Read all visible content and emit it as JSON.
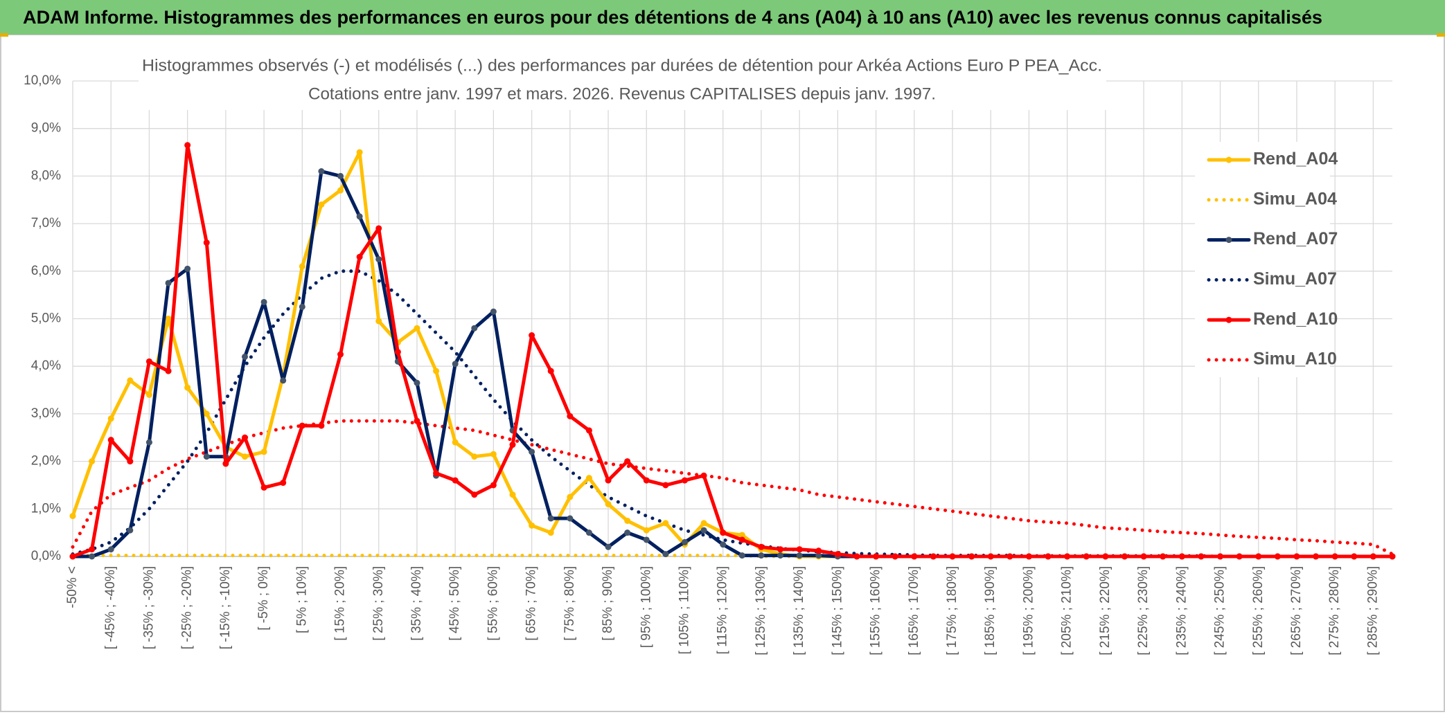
{
  "chart_data": {
    "type": "line",
    "header": "ADAM Informe. Histogrammes des performances en euros pour des détentions de 4 ans (A04) à 10 ans (A10) avec les revenus connus capitalisés",
    "title": "Histogrammes observés (-) et modélisés (...) des performances par durées de détention pour Arkéa Actions Euro P PEA_Acc.",
    "subtitle": "Cotations entre janv. 1997 et mars. 2026. Revenus CAPITALISES depuis janv. 1997.",
    "categories": [
      "-50% <",
      null,
      "[ -45% ; -40%]",
      null,
      "[ -35% ; -30%]",
      null,
      "[ -25% ; -20%]",
      null,
      "[ -15% ; -10%]",
      null,
      "[ -5% ; 0%]",
      null,
      "[ 5% ; 10%]",
      null,
      "[ 15% ; 20%]",
      null,
      "[ 25% ; 30%]",
      null,
      "[ 35% ; 40%]",
      null,
      "[ 45% ; 50%]",
      null,
      "[ 55% ; 60%]",
      null,
      "[ 65% ; 70%]",
      null,
      "[ 75% ; 80%]",
      null,
      "[ 85% ; 90%]",
      null,
      "[ 95% ; 100%]",
      null,
      "[ 105% ; 110%]",
      null,
      "[ 115% ; 120%]",
      null,
      "[ 125% ; 130%]",
      null,
      "[ 135% ; 140%]",
      null,
      "[ 145% ; 150%]",
      null,
      "[ 155% ; 160%]",
      null,
      "[ 165% ; 170%]",
      null,
      "[ 175% ; 180%]",
      null,
      "[ 185% ; 190%]",
      null,
      "[ 195% ; 200%]",
      null,
      "[ 205% ; 210%]",
      null,
      "[ 215% ; 220%]",
      null,
      "[ 225% ; 230%]",
      null,
      "[ 235% ; 240%]",
      null,
      "[ 245% ; 250%]",
      null,
      "[ 255% ; 260%]",
      null,
      "[ 265% ; 270%]",
      null,
      "[ 275% ; 280%]",
      null,
      "[ 285% ; 290%]",
      null
    ],
    "series": [
      {
        "name": "Rend_A04",
        "color": "#ffc000",
        "style": "solid",
        "values": [
          0.85,
          2.0,
          2.9,
          3.7,
          3.4,
          5.0,
          3.55,
          3.0,
          2.3,
          2.1,
          2.2,
          3.8,
          6.1,
          7.4,
          7.7,
          8.5,
          4.95,
          4.5,
          4.8,
          3.9,
          2.4,
          2.1,
          2.15,
          1.3,
          0.65,
          0.5,
          1.25,
          1.65,
          1.1,
          0.75,
          0.55,
          0.7,
          0.25,
          0.7,
          0.5,
          0.45,
          0.15,
          0.05,
          0,
          0,
          0,
          0,
          0,
          0,
          0,
          0,
          0,
          0,
          0,
          0,
          0,
          0,
          0,
          0,
          0,
          0,
          0,
          0,
          0,
          0,
          0,
          0,
          0,
          0,
          0,
          0,
          0,
          0,
          0,
          0
        ]
      },
      {
        "name": "Simu_A04",
        "color": "#ffc000",
        "style": "dotted",
        "values": [
          0.02,
          0.02,
          0.02,
          0.02,
          0.02,
          0.02,
          0.02,
          0.02,
          0.02,
          0.02,
          0.02,
          0.02,
          0.02,
          0.02,
          0.02,
          0.02,
          0.02,
          0.02,
          0.02,
          0.02,
          0.02,
          0.02,
          0.02,
          0.02,
          0.02,
          0.02,
          0.02,
          0.02,
          0.02,
          0.02,
          0.02,
          0.02,
          0.02,
          0.02,
          0.02,
          0.02,
          0,
          0,
          0,
          0,
          0,
          0,
          0,
          0,
          0,
          0,
          0,
          0,
          0,
          0,
          0,
          0,
          0,
          0,
          0,
          0,
          0,
          0,
          0,
          0,
          0,
          0,
          0,
          0,
          0,
          0,
          0,
          0,
          0,
          0
        ]
      },
      {
        "name": "Rend_A07",
        "color": "#002060",
        "marker": "#44546a",
        "style": "solid",
        "values": [
          0,
          0,
          0.15,
          0.55,
          2.4,
          5.75,
          6.05,
          2.1,
          2.1,
          4.2,
          5.35,
          3.7,
          5.25,
          8.1,
          8.0,
          7.15,
          6.25,
          4.1,
          3.65,
          1.7,
          4.05,
          4.8,
          5.15,
          2.65,
          2.2,
          0.8,
          0.8,
          0.5,
          0.2,
          0.5,
          0.35,
          0.05,
          0.3,
          0.55,
          0.25,
          0.02,
          0.02,
          0.02,
          0.02,
          0.02,
          0,
          0,
          0,
          0,
          0,
          0,
          0,
          0,
          0,
          0,
          0,
          0,
          0,
          0,
          0,
          0,
          0,
          0,
          0,
          0,
          0,
          0,
          0,
          0,
          0,
          0,
          0,
          0,
          0,
          0
        ]
      },
      {
        "name": "Simu_A07",
        "color": "#002060",
        "style": "dotted",
        "values": [
          0.05,
          0.15,
          0.3,
          0.6,
          1.0,
          1.5,
          2.0,
          2.6,
          3.3,
          4.0,
          4.6,
          5.1,
          5.5,
          5.85,
          6.0,
          6.0,
          5.8,
          5.5,
          5.1,
          4.7,
          4.3,
          3.8,
          3.3,
          2.85,
          2.45,
          2.1,
          1.8,
          1.5,
          1.25,
          1.05,
          0.85,
          0.7,
          0.55,
          0.45,
          0.35,
          0.28,
          0.22,
          0.17,
          0.13,
          0.1,
          0.08,
          0.06,
          0.05,
          0.04,
          0.03,
          0.02,
          0.02,
          0.02,
          0.02,
          0.02,
          0.01,
          0.01,
          0.01,
          0.01,
          0.01,
          0.01,
          0.01,
          0.01,
          0.01,
          0.01,
          0,
          0,
          0,
          0,
          0,
          0,
          0,
          0,
          0,
          0
        ]
      },
      {
        "name": "Rend_A10",
        "color": "#ff0000",
        "style": "solid",
        "values": [
          0,
          0.15,
          2.45,
          2.0,
          4.1,
          3.9,
          8.65,
          6.6,
          1.95,
          2.5,
          1.45,
          1.55,
          2.75,
          2.75,
          4.25,
          6.3,
          6.9,
          4.3,
          2.85,
          1.75,
          1.6,
          1.3,
          1.5,
          2.35,
          4.65,
          3.9,
          2.95,
          2.65,
          1.6,
          2.0,
          1.6,
          1.5,
          1.6,
          1.7,
          0.5,
          0.35,
          0.2,
          0.15,
          0.15,
          0.12,
          0.05,
          0,
          0,
          0,
          0,
          0,
          0,
          0,
          0,
          0,
          0,
          0,
          0,
          0,
          0,
          0,
          0,
          0,
          0,
          0,
          0,
          0,
          0,
          0,
          0,
          0,
          0,
          0,
          0,
          0
        ]
      },
      {
        "name": "Simu_A10",
        "color": "#ff0000",
        "style": "dotted",
        "values": [
          0.2,
          0.95,
          1.3,
          1.45,
          1.6,
          1.85,
          2.05,
          2.2,
          2.35,
          2.5,
          2.6,
          2.7,
          2.75,
          2.8,
          2.85,
          2.85,
          2.85,
          2.85,
          2.8,
          2.75,
          2.7,
          2.65,
          2.55,
          2.45,
          2.35,
          2.25,
          2.15,
          2.05,
          1.95,
          1.9,
          1.85,
          1.8,
          1.75,
          1.7,
          1.65,
          1.55,
          1.5,
          1.45,
          1.4,
          1.3,
          1.25,
          1.2,
          1.15,
          1.1,
          1.05,
          1.0,
          0.95,
          0.9,
          0.85,
          0.8,
          0.75,
          0.72,
          0.7,
          0.65,
          0.6,
          0.58,
          0.55,
          0.52,
          0.5,
          0.48,
          0.45,
          0.42,
          0.4,
          0.38,
          0.35,
          0.33,
          0.3,
          0.28,
          0.25,
          0.05
        ]
      }
    ],
    "ylim": [
      0,
      10
    ],
    "yticks": [
      {
        "value": 0,
        "label": "0,0%"
      },
      {
        "value": 1,
        "label": "1,0%"
      },
      {
        "value": 2,
        "label": "2,0%"
      },
      {
        "value": 3,
        "label": "3,0%"
      },
      {
        "value": 4,
        "label": "4,0%"
      },
      {
        "value": 5,
        "label": "5,0%"
      },
      {
        "value": 6,
        "label": "6,0%"
      },
      {
        "value": 7,
        "label": "7,0%"
      },
      {
        "value": 8,
        "label": "8,0%"
      },
      {
        "value": 9,
        "label": "9,0%"
      },
      {
        "value": 10,
        "label": "10,0%"
      }
    ],
    "grid": true,
    "legend": "right"
  }
}
